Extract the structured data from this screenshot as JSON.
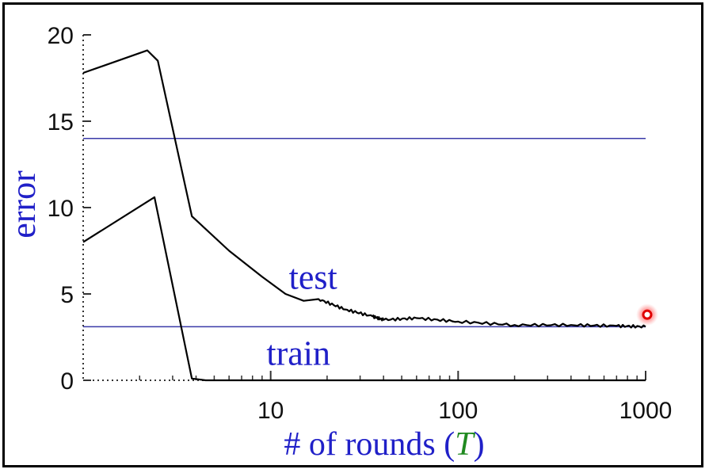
{
  "chart_data": {
    "type": "line",
    "xscale": "log",
    "xlim": [
      1,
      1000
    ],
    "ylim": [
      0,
      20
    ],
    "xlabel": "# of rounds (T)",
    "xlabel_parts": {
      "prefix": "# of rounds (",
      "var": "T",
      "suffix": ")"
    },
    "ylabel": "error",
    "x_tick_labels": [
      "10",
      "100",
      "1000"
    ],
    "x_ticks": [
      10,
      100,
      1000
    ],
    "y_tick_labels": [
      "0",
      "5",
      "10",
      "15",
      "20"
    ],
    "y_ticks": [
      0,
      5,
      10,
      15,
      20
    ],
    "hlines": [
      {
        "y": 14.0
      },
      {
        "y": 3.1
      }
    ],
    "series": [
      {
        "name": "test",
        "x": [
          1,
          2.2,
          2.5,
          3.8,
          6,
          9,
          12,
          15,
          18,
          25,
          35,
          40,
          60,
          100,
          200,
          400,
          700,
          1000
        ],
        "y": [
          17.8,
          19.1,
          18.5,
          9.5,
          7.5,
          6.0,
          5.0,
          4.6,
          4.7,
          4.1,
          3.7,
          3.5,
          3.6,
          3.4,
          3.2,
          3.2,
          3.15,
          3.1
        ]
      },
      {
        "name": "train",
        "x": [
          1,
          2.4,
          3.8,
          4.5,
          6,
          1000
        ],
        "y": [
          8.0,
          10.6,
          0.1,
          0.0,
          0.0,
          0.0
        ]
      }
    ],
    "annotations": [
      {
        "text": "test",
        "x": 12.5,
        "y": 5.3
      },
      {
        "text": "train",
        "x": 9.5,
        "y": 0.9
      }
    ],
    "marker": {
      "x": 1000,
      "y": 3.8
    }
  }
}
